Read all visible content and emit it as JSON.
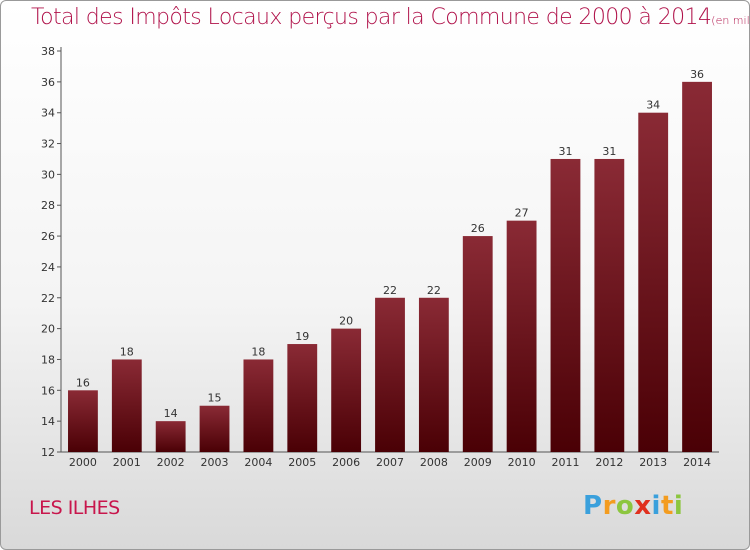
{
  "title": "Total des Impôts Locaux perçus par la Commune de 2000 à 2014",
  "unit": "(en milliers d'€)",
  "commune": "LES ILHES",
  "logo": {
    "letters": [
      "P",
      "r",
      "o",
      "x",
      "i",
      "t",
      "i"
    ],
    "colors": [
      "#3aa0dc",
      "#f39c1f",
      "#8cc63f",
      "#e0301e",
      "#3aa0dc",
      "#f39c1f",
      "#8cc63f"
    ]
  },
  "chart_data": {
    "type": "bar",
    "categories": [
      "2000",
      "2001",
      "2002",
      "2003",
      "2004",
      "2005",
      "2006",
      "2007",
      "2008",
      "2009",
      "2010",
      "2011",
      "2012",
      "2013",
      "2014"
    ],
    "values": [
      16,
      18,
      14,
      15,
      18,
      19,
      20,
      22,
      22,
      26,
      27,
      31,
      31,
      34,
      36
    ],
    "yticks": [
      12,
      14,
      16,
      18,
      20,
      22,
      24,
      26,
      28,
      30,
      32,
      34,
      36,
      38
    ],
    "ylim": [
      12,
      38
    ],
    "grid": false,
    "bar_color_top": "#8a2a35",
    "bar_color_bottom": "#4a0005"
  }
}
